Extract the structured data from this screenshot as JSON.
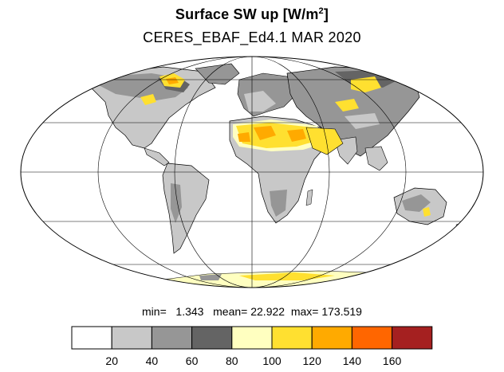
{
  "title": {
    "main": "Surface SW up [W/m",
    "exp": "2",
    "close": "]"
  },
  "subtitle": "CERES_EBAF_Ed4.1 MAR 2020",
  "stats": {
    "min_label": "min=",
    "min_value": "1.343",
    "mean_label": "mean=",
    "mean_value": "22.922",
    "max_label": "max=",
    "max_value": "173.519"
  },
  "colorbar": {
    "colors": [
      "#ffffff",
      "#c8c8c8",
      "#969696",
      "#646464",
      "#ffffc0",
      "#ffe030",
      "#ffaa00",
      "#ff6600",
      "#a52020"
    ],
    "tick_labels": [
      "20",
      "40",
      "60",
      "80",
      "100",
      "120",
      "140",
      "160"
    ]
  },
  "map": {
    "projection": "Mollweide",
    "colors": {
      "ocean": "#ffffff",
      "land_low": "#c8c8c8",
      "land_mid": "#969696",
      "land_dark": "#646464",
      "desert_pale": "#ffffc0",
      "desert_yellow": "#ffe030",
      "desert_orange": "#ffaa00",
      "coast": "#000000",
      "grid": "#000000"
    }
  }
}
